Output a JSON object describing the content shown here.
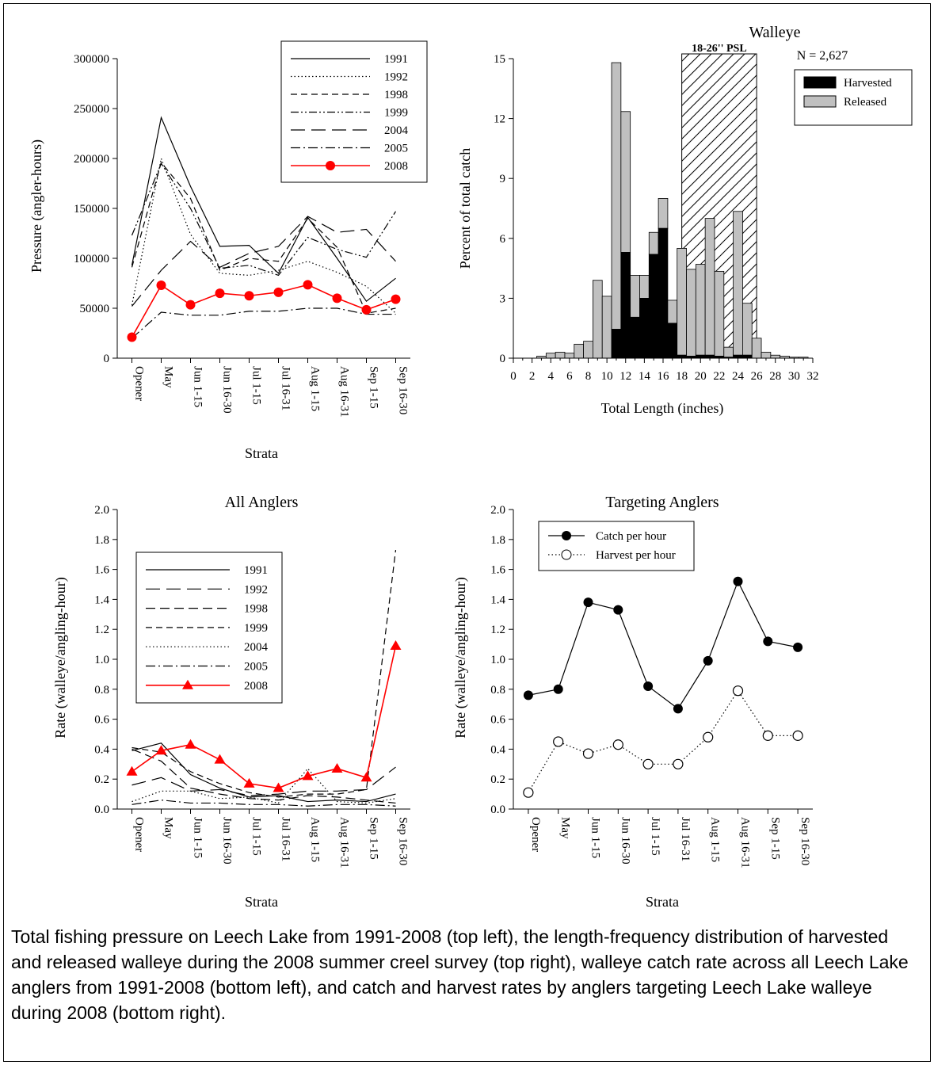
{
  "caption": "Total fishing pressure on Leech Lake from 1991-2008 (top left), the length-frequency distribution of harvested and released walleye during the 2008 summer creel survey (top right), walleye catch rate across all Leech Lake anglers from 1991-2008 (bottom left), and catch and harvest rates by anglers targeting Leech Lake walleye during 2008 (bottom right).",
  "colors": {
    "highlight": "#ff0000",
    "released": "#c0c0c0",
    "harvested": "#000000"
  },
  "chart_data": [
    {
      "type": "line",
      "title": "",
      "ylabel": "Pressure (angler-hours)",
      "xlabel": "Strata",
      "ylim": [
        0,
        300000
      ],
      "yticks": [
        0,
        50000,
        100000,
        150000,
        200000,
        250000,
        300000
      ],
      "categories": [
        "Opener",
        "May",
        "Jun 1-15",
        "Jun 16-30",
        "Jul 1-15",
        "Jul 16-31",
        "Aug 1-15",
        "Aug 16-31",
        "Sep 1-15",
        "Sep 16-30"
      ],
      "legend_position": "top-right",
      "series": [
        {
          "name": "1991",
          "style": "solid",
          "values": [
            93000,
            241000,
            172000,
            112000,
            113000,
            85000,
            141000,
            100000,
            57000,
            80000
          ]
        },
        {
          "name": "1992",
          "style": "dotted",
          "values": [
            53000,
            200000,
            124000,
            85000,
            83000,
            88000,
            97000,
            86000,
            72000,
            45000
          ]
        },
        {
          "name": "1998",
          "style": "short-dash",
          "values": [
            91000,
            196000,
            160000,
            88000,
            100000,
            97000,
            140000,
            111000,
            45000,
            50000
          ]
        },
        {
          "name": "1999",
          "style": "dash-dot-dot",
          "values": [
            123000,
            195000,
            150000,
            90000,
            93000,
            83000,
            121000,
            109000,
            101000,
            147000
          ]
        },
        {
          "name": "2004",
          "style": "long-dash",
          "values": [
            52000,
            88000,
            117000,
            91000,
            105000,
            112000,
            142000,
            126000,
            129000,
            97000
          ]
        },
        {
          "name": "2005",
          "style": "dash-dot",
          "values": [
            20000,
            46000,
            43000,
            43000,
            47000,
            47000,
            50000,
            50000,
            44000,
            44000
          ]
        },
        {
          "name": "2008",
          "style": "red-circle",
          "values": [
            21000,
            73000,
            53500,
            65000,
            62500,
            66000,
            73500,
            60000,
            48500,
            59000
          ]
        }
      ]
    },
    {
      "type": "bar",
      "title": "Walleye",
      "annotation": "N = 2,627",
      "slot_label": "18-26'' PSL",
      "slot_range": [
        18,
        26
      ],
      "xlabel": "Total Length (inches)",
      "ylabel": "Percent of total catch",
      "xlim": [
        0,
        32
      ],
      "xticks": [
        0,
        2,
        4,
        6,
        8,
        10,
        12,
        14,
        16,
        18,
        20,
        22,
        24,
        26,
        28,
        30,
        32
      ],
      "ylim": [
        0,
        15
      ],
      "yticks": [
        0,
        3,
        6,
        9,
        12,
        15
      ],
      "legend_position": "top-right",
      "categories": [
        3,
        4,
        5,
        6,
        7,
        8,
        9,
        10,
        11,
        12,
        13,
        14,
        15,
        16,
        17,
        18,
        19,
        20,
        21,
        22,
        23,
        24,
        25,
        26,
        27,
        28,
        29,
        30,
        31
      ],
      "series": [
        {
          "name": "Harvested",
          "values": [
            0,
            0,
            0,
            0,
            0,
            0,
            0,
            0,
            1.45,
            5.3,
            2.05,
            3.0,
            5.2,
            6.5,
            1.75,
            0.15,
            0.1,
            0.15,
            0.15,
            0.1,
            0.05,
            0.15,
            0.15,
            0,
            0,
            0,
            0,
            0,
            0
          ]
        },
        {
          "name": "Released",
          "values": [
            0.1,
            0.25,
            0.3,
            0.25,
            0.7,
            0.85,
            3.9,
            3.1,
            13.35,
            7.05,
            2.1,
            1.15,
            1.1,
            1.5,
            1.15,
            5.35,
            4.35,
            4.55,
            6.85,
            4.25,
            0.5,
            7.2,
            2.6,
            1.0,
            0.3,
            0.15,
            0.1,
            0.05,
            0.05
          ]
        }
      ]
    },
    {
      "type": "line",
      "title": "All Anglers",
      "ylabel": "Rate (walleye/angling-hour)",
      "xlabel": "Strata",
      "ylim": [
        0,
        2.0
      ],
      "yticks": [
        "0.0",
        "0.2",
        "0.4",
        "0.6",
        "0.8",
        "1.0",
        "1.2",
        "1.4",
        "1.6",
        "1.8",
        "2.0"
      ],
      "categories": [
        "Opener",
        "May",
        "Jun 1-15",
        "Jun 16-30",
        "Jul 1-15",
        "Jul 16-31",
        "Aug 1-15",
        "Aug 16-31",
        "Sep 1-15",
        "Sep 16-30"
      ],
      "legend_position": "left",
      "series": [
        {
          "name": "1991",
          "style": "solid",
          "values": [
            0.39,
            0.44,
            0.23,
            0.14,
            0.08,
            0.09,
            0.05,
            0.06,
            0.05,
            0.1
          ]
        },
        {
          "name": "1992",
          "style": "long-dash",
          "values": [
            0.16,
            0.21,
            0.12,
            0.13,
            0.09,
            0.1,
            0.12,
            0.12,
            0.13,
            0.28
          ]
        },
        {
          "name": "1998",
          "style": "medium-dash",
          "values": [
            0.4,
            0.32,
            0.14,
            0.1,
            0.07,
            0.06,
            0.09,
            0.08,
            0.06,
            0.04
          ]
        },
        {
          "name": "1999",
          "style": "short-dash",
          "values": [
            0.41,
            0.38,
            0.25,
            0.17,
            0.11,
            0.08,
            0.1,
            0.1,
            0.13,
            1.73
          ]
        },
        {
          "name": "2004",
          "style": "dotted",
          "values": [
            0.05,
            0.12,
            0.12,
            0.07,
            0.08,
            0.04,
            0.27,
            0.05,
            0.04,
            0.07
          ]
        },
        {
          "name": "2005",
          "style": "dash-dot",
          "values": [
            0.03,
            0.06,
            0.04,
            0.04,
            0.03,
            0.03,
            0.02,
            0.03,
            0.03,
            0.02
          ]
        },
        {
          "name": "2008",
          "style": "red-triangle",
          "values": [
            0.25,
            0.39,
            0.43,
            0.33,
            0.17,
            0.14,
            0.22,
            0.27,
            0.21,
            1.09
          ]
        }
      ]
    },
    {
      "type": "line",
      "title": "Targeting Anglers",
      "ylabel": "Rate (walleye/angling-hour)",
      "xlabel": "Strata",
      "ylim": [
        0,
        2.0
      ],
      "yticks": [
        "0.0",
        "0.2",
        "0.4",
        "0.6",
        "0.8",
        "1.0",
        "1.2",
        "1.4",
        "1.6",
        "1.8",
        "2.0"
      ],
      "categories": [
        "Opener",
        "May",
        "Jun 1-15",
        "Jun 16-30",
        "Jul 1-15",
        "Jul 16-31",
        "Aug 1-15",
        "Aug 16-31",
        "Sep 1-15",
        "Sep 16-30"
      ],
      "legend_position": "top-left",
      "series": [
        {
          "name": "Catch per hour",
          "style": "solid-filled-circle",
          "values": [
            0.76,
            0.8,
            1.38,
            1.33,
            0.82,
            0.67,
            0.99,
            1.52,
            1.12,
            1.08
          ]
        },
        {
          "name": "Harvest per hour",
          "style": "dotted-open-circle",
          "values": [
            0.11,
            0.45,
            0.37,
            0.43,
            0.3,
            0.3,
            0.48,
            0.79,
            0.49,
            0.49
          ]
        }
      ]
    }
  ]
}
